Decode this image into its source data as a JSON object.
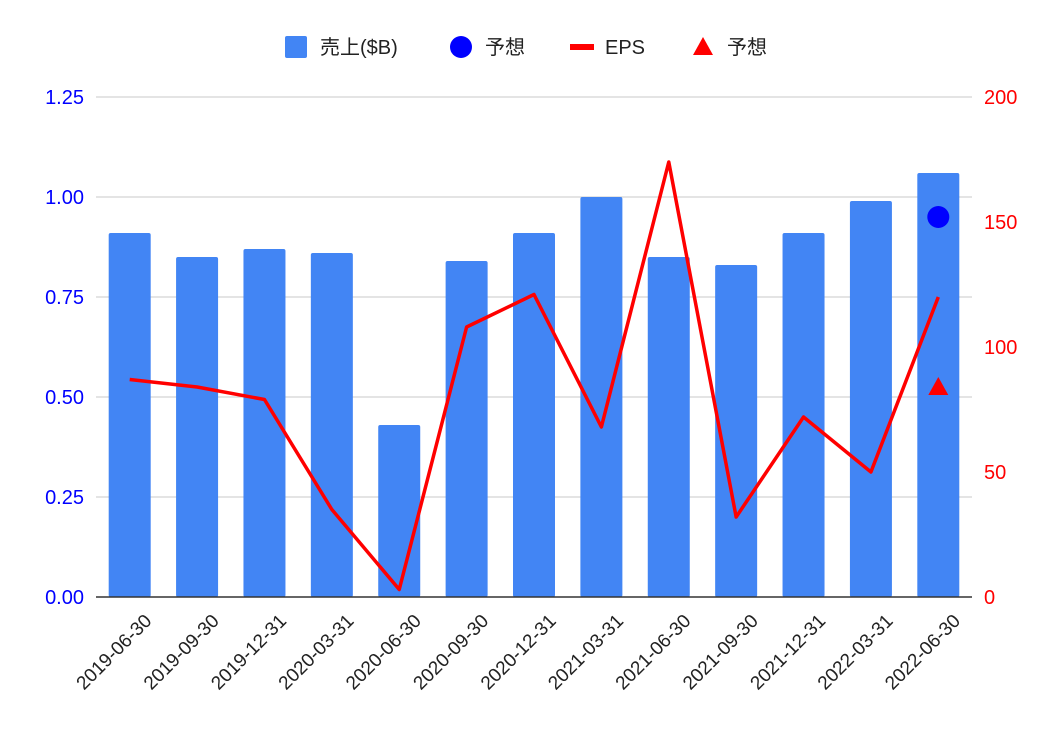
{
  "chart_data": {
    "type": "bar",
    "categories": [
      "2019-06-30",
      "2019-09-30",
      "2019-12-31",
      "2020-03-31",
      "2020-06-30",
      "2020-09-30",
      "2020-12-31",
      "2021-03-31",
      "2021-06-30",
      "2021-09-30",
      "2021-12-31",
      "2022-03-31",
      "2022-06-30"
    ],
    "series": [
      {
        "name": "売上($B)",
        "type": "bar",
        "axis": "left",
        "color": "#4285f4",
        "values": [
          0.91,
          0.85,
          0.87,
          0.86,
          0.43,
          0.84,
          0.91,
          1.0,
          0.85,
          0.83,
          0.91,
          0.99,
          1.06
        ]
      },
      {
        "name": "予想",
        "type": "scatter",
        "marker": "circle",
        "axis": "left",
        "color": "#0000ff",
        "values": [
          null,
          null,
          null,
          null,
          null,
          null,
          null,
          null,
          null,
          null,
          null,
          null,
          0.95
        ]
      },
      {
        "name": "EPS",
        "type": "line",
        "axis": "right",
        "color": "#ff0000",
        "values": [
          87,
          84,
          79,
          35,
          3,
          108,
          121,
          68,
          174,
          32,
          72,
          50,
          120
        ]
      },
      {
        "name": "予想",
        "type": "scatter",
        "marker": "triangle",
        "axis": "right",
        "color": "#ff0000",
        "values": [
          null,
          null,
          null,
          null,
          null,
          null,
          null,
          null,
          null,
          null,
          null,
          null,
          84
        ]
      }
    ],
    "y_left": {
      "ylim": [
        0,
        1.25
      ],
      "ticks": [
        "0.00",
        "0.25",
        "0.50",
        "0.75",
        "1.00",
        "1.25"
      ],
      "color": "#0000ff"
    },
    "y_right": {
      "ylim": [
        0,
        200
      ],
      "ticks": [
        "0",
        "50",
        "100",
        "150",
        "200"
      ],
      "color": "#ff0000"
    },
    "title": "",
    "xlabel": "",
    "ylabel": "",
    "grid": true,
    "legend_position": "top"
  }
}
